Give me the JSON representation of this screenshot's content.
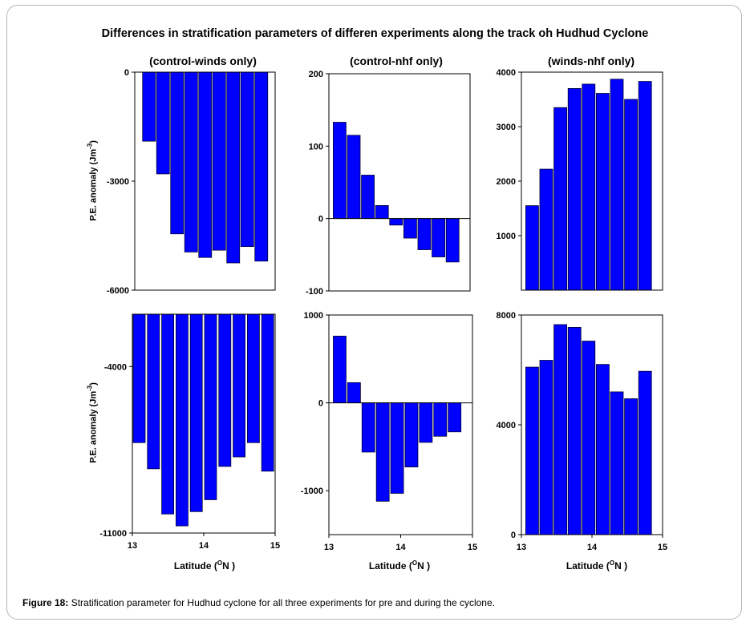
{
  "figure_title": "Differences in stratification parameters of differen experiments along the track oh Hudhud Cyclone",
  "column_titles": [
    "(control-winds only)",
    "(control-nhf only)",
    "(winds-nhf only)"
  ],
  "ylabel_prefix": "P.E. anomaly (Jm",
  "ylabel_exp": "-3",
  "ylabel_suffix": ")",
  "xlabel_prefix": "Latitude (",
  "xlabel_deg": "O",
  "xlabel_suffix": "N )",
  "caption_label": "Figure 18:",
  "caption_text": " Stratification parameter for Hudhud cyclone for all three experiments for pre and during the cyclone.",
  "colors": {
    "bar": "#0000ff",
    "bar_edge": "#000033"
  },
  "chart_data": [
    {
      "type": "bar",
      "title": "(control-winds only)",
      "row": "top",
      "xlabel": "",
      "ylabel": "P.E. anomaly (Jm-3)",
      "xlim": [
        13,
        15
      ],
      "ylim": [
        -6000,
        0
      ],
      "yticks": [
        0,
        -3000,
        -6000
      ],
      "xticks": [],
      "x": [
        13.1,
        13.3,
        13.5,
        13.7,
        13.9,
        14.1,
        14.3,
        14.5,
        14.7,
        14.9
      ],
      "values": [
        -1900,
        -2800,
        -4450,
        -4950,
        -5100,
        -4900,
        -5250,
        -4800,
        -5200,
        null
      ]
    },
    {
      "type": "bar",
      "title": "(control-nhf only)",
      "row": "top",
      "xlabel": "",
      "ylabel": "",
      "xlim": [
        13,
        15
      ],
      "ylim": [
        -100,
        200
      ],
      "yticks": [
        200,
        100,
        0,
        -100
      ],
      "xticks": [],
      "x": [
        13.05,
        13.25,
        13.45,
        13.65,
        13.85,
        14.05,
        14.25,
        14.45,
        14.65
      ],
      "values": [
        133,
        115,
        60,
        18,
        -9,
        -27,
        -43,
        -53,
        -60
      ]
    },
    {
      "type": "bar",
      "title": "(winds-nhf only)",
      "row": "top",
      "xlabel": "",
      "ylabel": "",
      "xlim": [
        13,
        15
      ],
      "ylim": [
        0,
        4000
      ],
      "yticks": [
        4000,
        3000,
        2000,
        1000
      ],
      "xticks": [],
      "x": [
        13.05,
        13.25,
        13.45,
        13.65,
        13.85,
        14.05,
        14.25,
        14.45,
        14.65,
        14.85
      ],
      "values": [
        1550,
        2220,
        3350,
        3700,
        3780,
        3610,
        3870,
        3500,
        3830,
        null
      ]
    },
    {
      "type": "bar",
      "title": "",
      "row": "bottom",
      "xlabel": "Latitude (ON )",
      "ylabel": "P.E. anomaly (Jm-3)",
      "xlim": [
        13,
        15
      ],
      "ylim": [
        -11000,
        -1800
      ],
      "baseline": -1800,
      "yticks": [
        -4000,
        -11000
      ],
      "xticks": [
        13,
        14,
        15
      ],
      "x": [
        13.0,
        13.2,
        13.4,
        13.6,
        13.8,
        14.0,
        14.2,
        14.4,
        14.6,
        14.8
      ],
      "values": [
        -7200,
        -8300,
        -10200,
        -10700,
        -10100,
        -9600,
        -8200,
        -7800,
        -7200,
        -8400
      ]
    },
    {
      "type": "bar",
      "title": "",
      "row": "bottom",
      "xlabel": "Latitude (ON )",
      "ylabel": "",
      "xlim": [
        13,
        15
      ],
      "ylim": [
        -1500,
        1000
      ],
      "yticks": [
        1000,
        0,
        -1000
      ],
      "xticks": [
        13,
        14,
        15
      ],
      "x": [
        13.05,
        13.25,
        13.45,
        13.65,
        13.85,
        14.05,
        14.25,
        14.45,
        14.65
      ],
      "values": [
        760,
        230,
        -560,
        -1120,
        -1030,
        -730,
        -450,
        -380,
        -330
      ]
    },
    {
      "type": "bar",
      "title": "",
      "row": "bottom",
      "xlabel": "Latitude (ON )",
      "ylabel": "",
      "xlim": [
        13,
        15
      ],
      "ylim": [
        0,
        8000
      ],
      "yticks": [
        8000,
        4000,
        0
      ],
      "xticks": [
        13,
        14,
        15
      ],
      "x": [
        13.05,
        13.25,
        13.45,
        13.65,
        13.85,
        14.05,
        14.25,
        14.45,
        14.65,
        14.85
      ],
      "values": [
        6100,
        6350,
        7650,
        7550,
        7050,
        6200,
        5200,
        4950,
        5950,
        null
      ]
    }
  ]
}
